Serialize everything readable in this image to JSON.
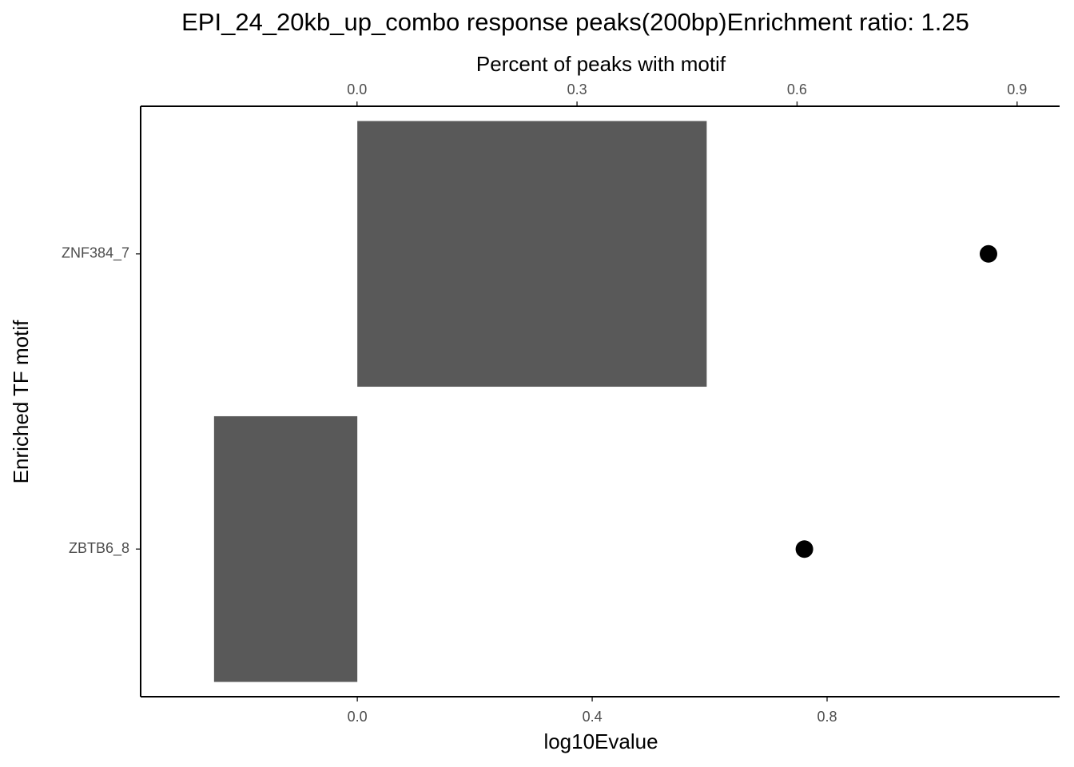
{
  "chart_data": {
    "type": "bar",
    "title": "EPI_24_20kb_up_combo response peaks(200bp)Enrichment ratio: 1.25",
    "xlabel": "log10Evalue",
    "x2label": "Percent of peaks with motif",
    "ylabel": "Enriched TF motif",
    "categories": [
      "ZNF384_7",
      "ZBTB6_8"
    ],
    "values": [
      0.595,
      -0.244
    ],
    "x2_values": [
      0.861,
      0.61
    ],
    "color": "#595959",
    "point_color": "#000000",
    "xlim": [
      -0.369,
      1.196
    ],
    "xticks": [
      {
        "value": 0,
        "label": "0.0"
      },
      0.4,
      0.8
    ],
    "x2lim": [
      -0.295,
      0.958
    ],
    "x2ticks": [
      {
        "value": 0,
        "label": "0.0"
      },
      0.3,
      0.6,
      0.9
    ]
  }
}
